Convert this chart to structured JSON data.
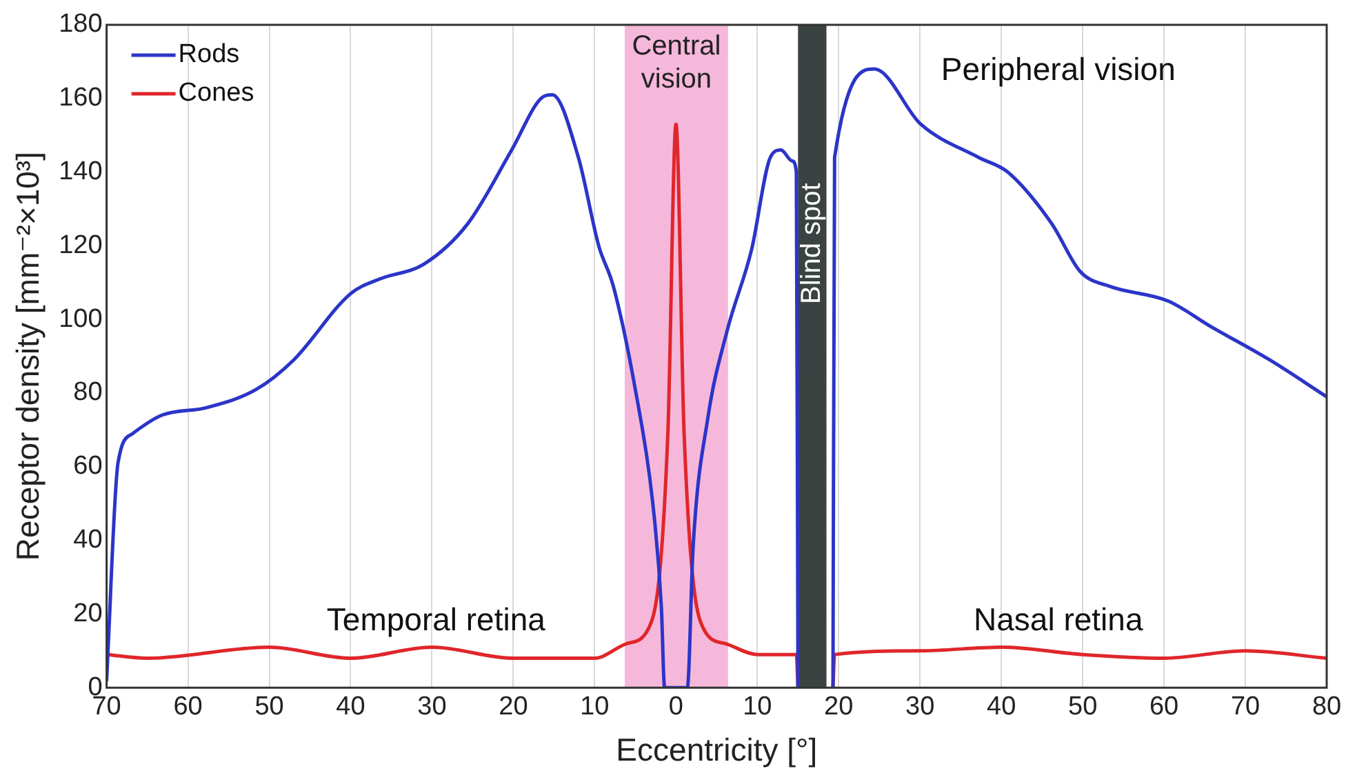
{
  "chart_data": {
    "type": "line",
    "xlabel": "Eccentricity [°]",
    "ylabel": "Receptor density [mm⁻²×10³]",
    "xlim": [
      -70,
      80
    ],
    "xticks": [
      {
        "value": -70,
        "label": "70"
      },
      {
        "value": -60,
        "label": "60"
      },
      {
        "value": -50,
        "label": "50"
      },
      {
        "value": -40,
        "label": "40"
      },
      {
        "value": -30,
        "label": "30"
      },
      {
        "value": -20,
        "label": "20"
      },
      {
        "value": -10,
        "label": "10"
      },
      0,
      10,
      20,
      30,
      40,
      50,
      60,
      70,
      80
    ],
    "ylim": [
      0,
      180
    ],
    "yticks": [
      0,
      20,
      40,
      60,
      80,
      100,
      120,
      140,
      160,
      180
    ],
    "grid": "x",
    "legend": "top left",
    "marker": "none",
    "line_style": "solid",
    "series": [
      {
        "name": "Rods",
        "color": "#2b35c8",
        "x": [
          -70,
          -68.6,
          -66.8,
          -63.2,
          -57.8,
          -51.6,
          -47,
          -40,
          -36.4,
          -31,
          -25.6,
          -20.2,
          -16.6,
          -15.2,
          -12,
          -9.5,
          -7.7,
          -5,
          -2.9,
          -1.8,
          -1.4,
          1.4,
          2.1,
          3.9,
          6.3,
          9.3,
          11.6,
          12.9,
          14.3,
          14.8,
          15,
          17,
          19.3,
          19.5,
          24.4,
          30.1,
          37.2,
          40.8,
          46.2,
          49.7,
          53.3,
          60.5,
          65.8,
          73,
          80
        ],
        "values": [
          2,
          61,
          69,
          74,
          76,
          81,
          89,
          107,
          111,
          115,
          126,
          146,
          160,
          161,
          144,
          120,
          109,
          81,
          51,
          22,
          0,
          0,
          38,
          73,
          97,
          119,
          144,
          146,
          143,
          140,
          0,
          null,
          0,
          144,
          168,
          153,
          144,
          140,
          126,
          113,
          109,
          105,
          98,
          89,
          79
        ]
      },
      {
        "name": "Cones",
        "color": "#e0262b",
        "x": [
          -70,
          -65,
          -50,
          -40,
          -30,
          -20,
          -10,
          -6,
          -3,
          -1,
          0,
          1,
          3,
          6,
          10,
          14.8,
          15,
          17,
          19.3,
          19.5,
          30,
          40,
          50,
          60,
          70,
          80
        ],
        "values": [
          9,
          8,
          11,
          8,
          11,
          8,
          8,
          12,
          18,
          69,
          153,
          69,
          18,
          12,
          9,
          9,
          0,
          null,
          0,
          9,
          10,
          11,
          9,
          8,
          10,
          8
        ]
      }
    ],
    "bands": [
      {
        "axis": "x",
        "from": -6.3,
        "to": 6.4,
        "label": "Central vision",
        "color": "#f6b8da"
      },
      {
        "axis": "x",
        "from": 15,
        "to": 18.5,
        "label": "Blind spot",
        "color": "#3b4242"
      }
    ],
    "annotations": [
      "Temporal retina",
      "Peripheral vision",
      "Nasal retina"
    ]
  }
}
